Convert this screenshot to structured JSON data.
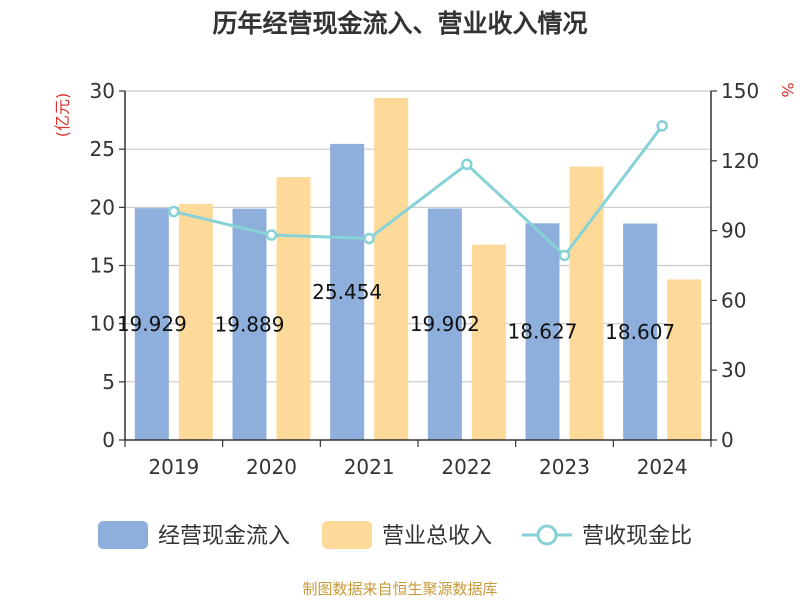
{
  "chart_data": {
    "type": "bar",
    "title": "历年经营现金流入、营业收入情况",
    "categories": [
      "2019",
      "2020",
      "2021",
      "2022",
      "2023",
      "2024"
    ],
    "series": [
      {
        "name": "经营现金流入",
        "kind": "bar",
        "axis": "left",
        "color": "#8eaedb",
        "values": [
          19.929,
          19.889,
          25.454,
          19.902,
          18.627,
          18.607
        ]
      },
      {
        "name": "营业总收入",
        "kind": "bar",
        "axis": "left",
        "color": "#fdd99a",
        "values": [
          20.3,
          22.6,
          29.4,
          16.8,
          23.5,
          13.8
        ]
      },
      {
        "name": "营收现金比",
        "kind": "line",
        "axis": "right",
        "color": "#86d2d6",
        "values": [
          98.2,
          88.1,
          86.6,
          118.5,
          79.3,
          135.0
        ]
      }
    ],
    "data_labels": [
      "19.929",
      "19.889",
      "25.454",
      "19.902",
      "18.627",
      "18.607"
    ],
    "y_left": {
      "label": "(亿元)",
      "min": 0,
      "max": 30,
      "ticks": [
        0,
        5,
        10,
        15,
        20,
        25,
        30
      ]
    },
    "y_right": {
      "label": "%",
      "min": 0,
      "max": 150,
      "ticks": [
        0,
        30,
        60,
        90,
        120,
        150
      ]
    },
    "grid": true,
    "legend_position": "bottom"
  },
  "source": "制图数据来自恒生聚源数据库"
}
